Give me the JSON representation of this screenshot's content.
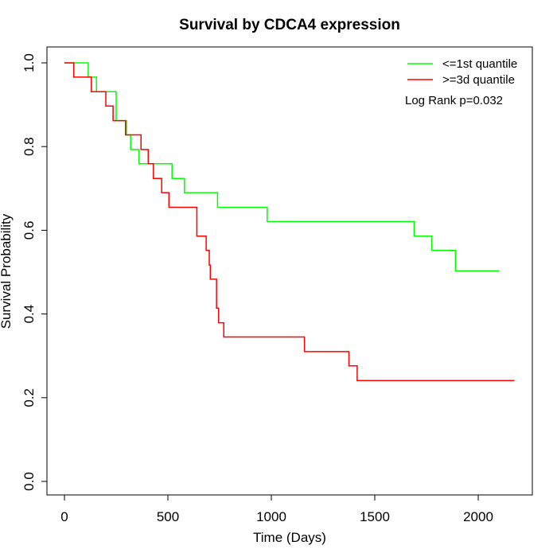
{
  "chart_data": {
    "type": "line",
    "step": true,
    "title": "Survival by CDCA4 expression",
    "xlabel": "Time (Days)",
    "ylabel": "Survival Probability",
    "xlim": [
      0,
      2180
    ],
    "ylim": [
      0,
      1
    ],
    "x_ticks": [
      0,
      500,
      1000,
      1500,
      2000
    ],
    "y_ticks": [
      0.0,
      0.2,
      0.4,
      0.6,
      0.8,
      1.0
    ],
    "x_tick_labels": [
      "0",
      "500",
      "1000",
      "1500",
      "2000"
    ],
    "y_tick_labels": [
      "0.0",
      "0.2",
      "0.4",
      "0.6",
      "0.8",
      "1.0"
    ],
    "legend_position": "top-right",
    "annotation": "Log Rank p=0.032",
    "series": [
      {
        "name": "<=1st quantile",
        "color": "#00ff00",
        "points": [
          [
            0,
            1.0
          ],
          [
            115,
            0.966
          ],
          [
            155,
            0.931
          ],
          [
            250,
            0.862
          ],
          [
            300,
            0.828
          ],
          [
            320,
            0.793
          ],
          [
            360,
            0.759
          ],
          [
            520,
            0.724
          ],
          [
            580,
            0.69
          ],
          [
            740,
            0.655
          ],
          [
            980,
            0.621
          ],
          [
            1690,
            0.586
          ],
          [
            1775,
            0.552
          ],
          [
            1890,
            0.503
          ],
          [
            2100,
            0.503
          ]
        ]
      },
      {
        "name": ">=3d quantile",
        "color": "#ff0000",
        "points": [
          [
            0,
            1.0
          ],
          [
            45,
            0.966
          ],
          [
            130,
            0.931
          ],
          [
            200,
            0.897
          ],
          [
            235,
            0.862
          ],
          [
            295,
            0.828
          ],
          [
            370,
            0.793
          ],
          [
            405,
            0.759
          ],
          [
            430,
            0.724
          ],
          [
            470,
            0.69
          ],
          [
            505,
            0.655
          ],
          [
            640,
            0.586
          ],
          [
            685,
            0.552
          ],
          [
            700,
            0.517
          ],
          [
            705,
            0.483
          ],
          [
            735,
            0.414
          ],
          [
            745,
            0.379
          ],
          [
            770,
            0.345
          ],
          [
            1160,
            0.31
          ],
          [
            1375,
            0.276
          ],
          [
            1415,
            0.241
          ],
          [
            2175,
            0.241
          ]
        ]
      }
    ]
  }
}
